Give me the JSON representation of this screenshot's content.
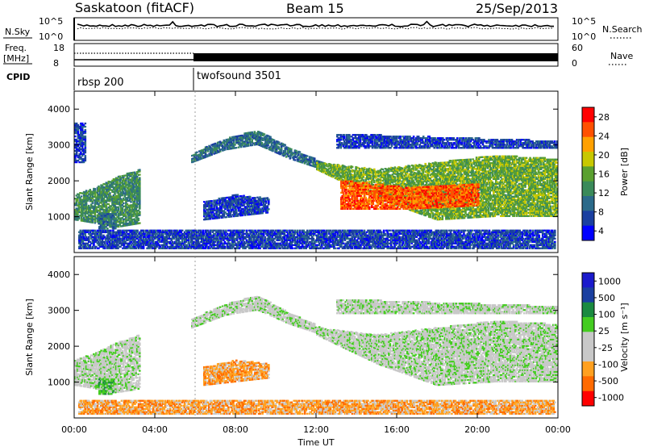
{
  "header": {
    "radar": "Saskatoon (fitACF)",
    "beam": "Beam 15",
    "date": "25/Sep/2013"
  },
  "top_panels": {
    "nsky_label": "N.Sky",
    "nsky_ticks": [
      "10^5",
      "10^0"
    ],
    "nsearch_label": "N.Search",
    "nsearch_ticks": [
      "10^5",
      "10^0"
    ],
    "freq_label": "Freq.",
    "freq_unit": "[MHz]",
    "freq_ticks": [
      "18",
      "8"
    ],
    "nave_label": "Nave",
    "nave_ticks": [
      "60",
      "0"
    ],
    "cpid_label": "CPID",
    "cpid_segments": [
      {
        "name": "rbsp 200",
        "start_hour": 0
      },
      {
        "name": "twofsound 3501",
        "start_hour": 6
      }
    ]
  },
  "colors": {
    "power_scale": [
      "#0000ff",
      "#1a3fa0",
      "#2b6a8a",
      "#3a8a5a",
      "#5aa030",
      "#c8c800",
      "#ffa000",
      "#ff5000",
      "#ff0000"
    ],
    "velocity_scale": [
      "#ff0000",
      "#ff6a00",
      "#ffa020",
      "#c8c8c8",
      "#c8c8c8",
      "#44cc20",
      "#1a8a40",
      "#1a3fa0",
      "#1a1acc"
    ],
    "ground_scatter": "#c0c0c0"
  },
  "chart_data": [
    {
      "type": "heatmap",
      "title": "Power",
      "xlabel": "",
      "ylabel": "Slant Range [km]",
      "xlim": [
        0,
        24
      ],
      "ylim": [
        0,
        4500
      ],
      "x_ticks": [
        "00:00",
        "04:00",
        "08:00",
        "12:00",
        "16:00",
        "20:00",
        "00:00"
      ],
      "y_ticks": [
        1000,
        2000,
        3000,
        4000
      ],
      "colorbar_label": "Power [dB]",
      "colorbar_ticks": [
        "28",
        "24",
        "20",
        "16",
        "12",
        "8",
        "4"
      ],
      "regions": [
        {
          "t0": 0.0,
          "t1": 3.2,
          "r_lo": [
            900,
            800,
            700,
            800
          ],
          "r_hi": [
            1600,
            1800,
            2100,
            2300
          ],
          "level": 3
        },
        {
          "t0": 0.0,
          "t1": 0.5,
          "r_lo": [
            2500
          ],
          "r_hi": [
            3600
          ],
          "level": 1
        },
        {
          "t0": 1.2,
          "t1": 2.0,
          "r_lo": [
            650
          ],
          "r_hi": [
            1100
          ],
          "level": 2
        },
        {
          "t0": 6.4,
          "t1": 9.6,
          "r_lo": [
            900,
            1000,
            1100
          ],
          "r_hi": [
            1400,
            1600,
            1500
          ],
          "level": 1
        },
        {
          "t0": 5.8,
          "t1": 12.3,
          "r_lo": [
            2500,
            2850,
            3000,
            2600,
            2300
          ],
          "r_hi": [
            2750,
            3150,
            3400,
            2900,
            2500
          ],
          "level": 2
        },
        {
          "t0": 12.0,
          "t1": 23.9,
          "r_lo": [
            2300,
            1500,
            900,
            1000,
            1000
          ],
          "r_hi": [
            2500,
            2300,
            2500,
            2700,
            2600
          ],
          "level": 4
        },
        {
          "t0": 13.2,
          "t1": 20.0,
          "r_lo": [
            1200,
            1200,
            1300
          ],
          "r_hi": [
            2000,
            1800,
            1900
          ],
          "level": 7
        },
        {
          "t0": 13.0,
          "t1": 23.9,
          "r_lo": [
            2900,
            2900,
            2900
          ],
          "r_hi": [
            3300,
            3200,
            3100
          ],
          "level": 1
        },
        {
          "t0": 0.2,
          "t1": 23.8,
          "r_lo": [
            100
          ],
          "r_hi": [
            600
          ],
          "level": 1
        }
      ]
    },
    {
      "type": "heatmap",
      "title": "Velocity",
      "xlabel": "Time UT",
      "ylabel": "Slant Range [km]",
      "xlim": [
        0,
        24
      ],
      "ylim": [
        0,
        4500
      ],
      "x_ticks": [
        "00:00",
        "04:00",
        "08:00",
        "12:00",
        "16:00",
        "20:00",
        "00:00"
      ],
      "y_ticks": [
        1000,
        2000,
        3000,
        4000
      ],
      "colorbar_label": "Velocity [m s⁻¹]",
      "colorbar_ticks": [
        "1000",
        "500",
        "100",
        "25",
        "-25",
        "-100",
        "-500",
        "-1000"
      ],
      "regions": [
        {
          "t0": 0.0,
          "t1": 3.2,
          "r_lo": [
            900,
            800,
            700,
            800
          ],
          "r_hi": [
            1600,
            1800,
            2100,
            2300
          ],
          "level": 4
        },
        {
          "t0": 1.2,
          "t1": 2.0,
          "r_lo": [
            650
          ],
          "r_hi": [
            1100
          ],
          "level": 5
        },
        {
          "t0": 6.4,
          "t1": 9.6,
          "r_lo": [
            900,
            1000,
            1100
          ],
          "r_hi": [
            1400,
            1600,
            1500
          ],
          "level": 2
        },
        {
          "t0": 5.8,
          "t1": 12.3,
          "r_lo": [
            2500,
            2850,
            3000,
            2600,
            2300
          ],
          "r_hi": [
            2750,
            3150,
            3400,
            2900,
            2500
          ],
          "level": 4
        },
        {
          "t0": 12.0,
          "t1": 23.9,
          "r_lo": [
            2300,
            1500,
            900,
            1000,
            1000
          ],
          "r_hi": [
            2500,
            2300,
            2500,
            2700,
            2600
          ],
          "level": 4
        },
        {
          "t0": 13.0,
          "t1": 23.9,
          "r_lo": [
            2900,
            2900,
            2900
          ],
          "r_hi": [
            3300,
            3200,
            3100
          ],
          "level": 4
        },
        {
          "t0": 0.2,
          "t1": 23.8,
          "r_lo": [
            100
          ],
          "r_hi": [
            500
          ],
          "level": 2
        }
      ]
    }
  ]
}
